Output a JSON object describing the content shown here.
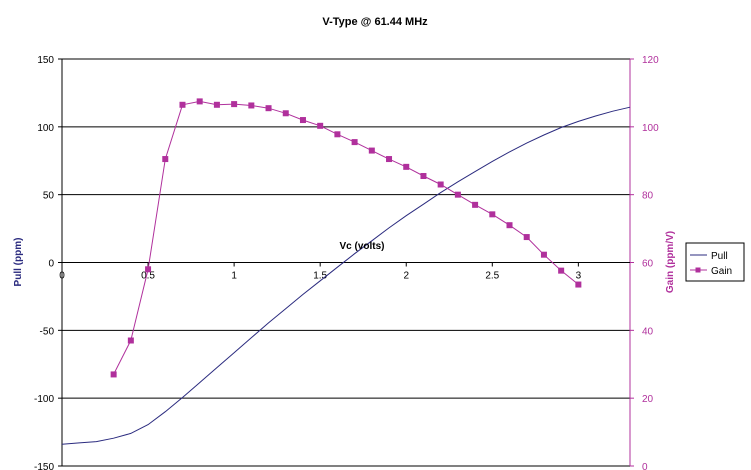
{
  "chart_data": {
    "type": "line",
    "title": "V-Type @ 61.44 MHz",
    "xlabel": "Vc (volts)",
    "ylabel": "Pull (ppm)",
    "y2label": "Gain (ppm/V)",
    "xlim": [
      0,
      3.3
    ],
    "ylim": [
      -150,
      150
    ],
    "y2lim": [
      0,
      120
    ],
    "x_ticks": [
      0,
      0.5,
      1,
      1.5,
      2,
      2.5,
      3
    ],
    "x_tick_labels": [
      "0",
      "0.5",
      "1",
      "1.5",
      "2",
      "2.5",
      "3"
    ],
    "y_ticks": [
      -150,
      -100,
      -50,
      0,
      50,
      100,
      150
    ],
    "y_tick_labels": [
      "-150",
      "-100",
      "-50",
      "0",
      "50",
      "100",
      "150"
    ],
    "y2_ticks": [
      0,
      20,
      40,
      60,
      80,
      100,
      120
    ],
    "y2_tick_labels": [
      "0",
      "20",
      "40",
      "60",
      "80",
      "100",
      "120"
    ],
    "grid": "horizontal major lines",
    "legend_position": "right",
    "colors": {
      "pull": "#2b2b7f",
      "gain": "#b0309c"
    },
    "series": [
      {
        "name": "Pull",
        "axis": "left",
        "marker": "none",
        "x": [
          0,
          0.1,
          0.2,
          0.3,
          0.4,
          0.5,
          0.6,
          0.7,
          0.8,
          0.9,
          1.0,
          1.1,
          1.2,
          1.3,
          1.4,
          1.5,
          1.6,
          1.7,
          1.8,
          1.9,
          2.0,
          2.1,
          2.2,
          2.3,
          2.4,
          2.5,
          2.6,
          2.7,
          2.8,
          2.9,
          3.0,
          3.1,
          3.2,
          3.3
        ],
        "y": [
          -134,
          -133,
          -132,
          -129.5,
          -126,
          -119.5,
          -110,
          -99.5,
          -88.5,
          -77.5,
          -66.5,
          -55.5,
          -44.5,
          -34,
          -23.5,
          -13.5,
          -3.5,
          6.5,
          16,
          25.5,
          34.5,
          43,
          51.5,
          59.5,
          67,
          74.5,
          81.5,
          88,
          94,
          99.5,
          104,
          108,
          111.5,
          114.5
        ]
      },
      {
        "name": "Gain",
        "axis": "right",
        "marker": "square",
        "x": [
          0.3,
          0.4,
          0.5,
          0.6,
          0.7,
          0.8,
          0.9,
          1.0,
          1.1,
          1.2,
          1.3,
          1.4,
          1.5,
          1.6,
          1.7,
          1.8,
          1.9,
          2.0,
          2.1,
          2.2,
          2.3,
          2.4,
          2.5,
          2.6,
          2.7,
          2.8,
          2.9,
          3.0
        ],
        "y": [
          27,
          37,
          58,
          90.5,
          106.5,
          107.5,
          106.5,
          106.7,
          106.3,
          105.5,
          104,
          102,
          100.3,
          97.8,
          95.5,
          93,
          90.5,
          88.2,
          85.5,
          83,
          80,
          77,
          74.2,
          71,
          67.5,
          62.3,
          57.6,
          53.5
        ]
      }
    ]
  }
}
